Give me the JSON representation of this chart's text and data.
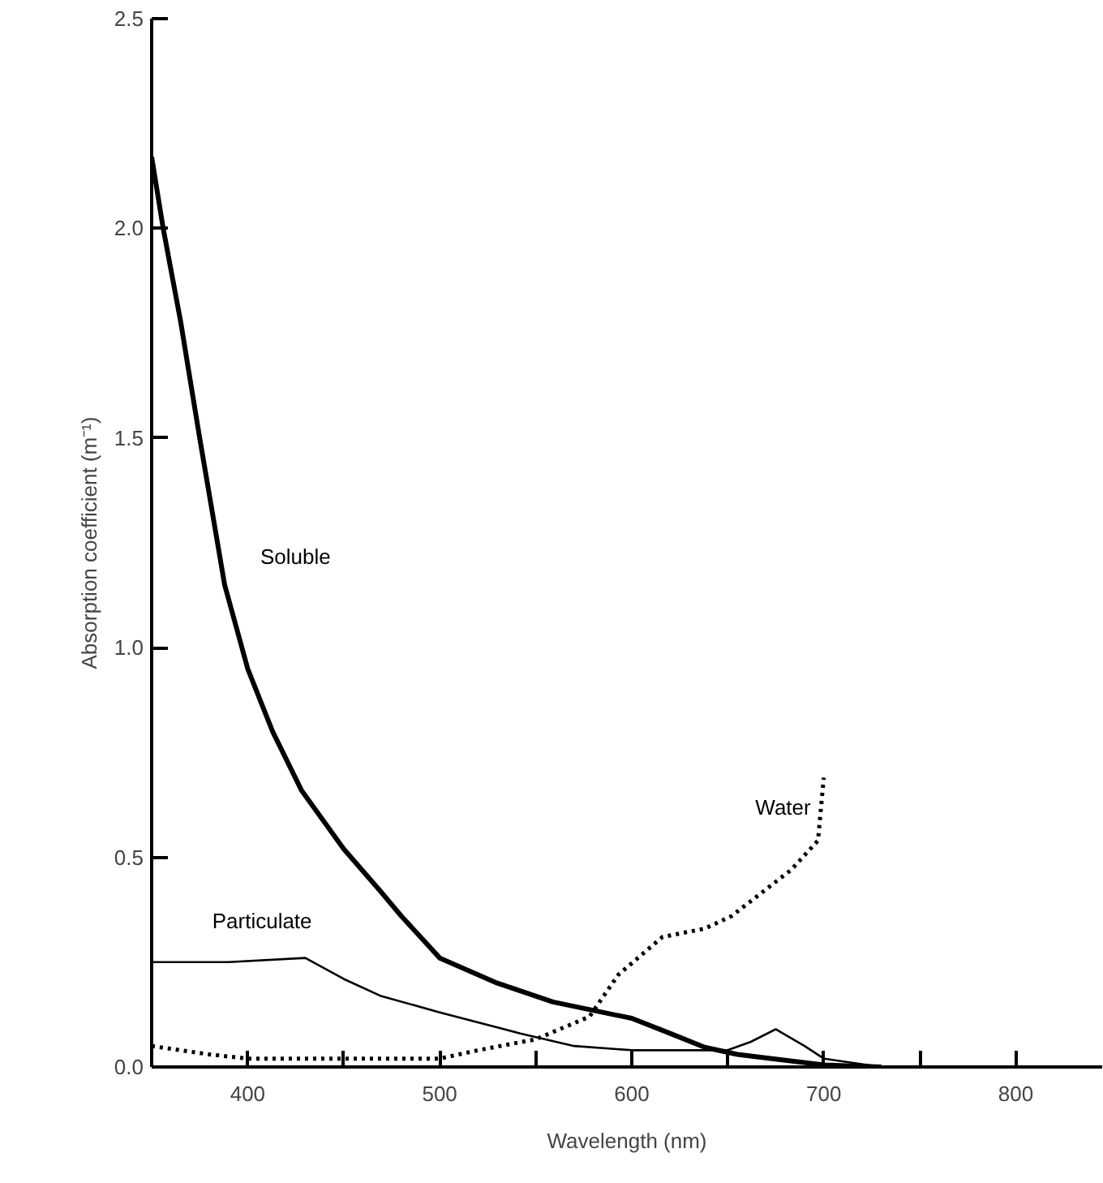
{
  "chart_data": {
    "type": "line",
    "xlabel": "Wavelength (nm)",
    "ylabel": "Absorption coefficient (m⁻¹)",
    "xlim": [
      350,
      845
    ],
    "ylim": [
      0,
      2.5
    ],
    "xticks": [
      400,
      {
        "value": 450,
        "label": null
      },
      500,
      {
        "value": 550,
        "label": null
      },
      600,
      {
        "value": 650,
        "label": null
      },
      700,
      {
        "value": 750,
        "label": null
      },
      800
    ],
    "yticks": [
      {
        "value": 0,
        "label": "0.0"
      },
      0.5,
      {
        "value": 1,
        "label": "1.0"
      },
      1.5,
      {
        "value": 2,
        "label": "2.0"
      },
      2.5
    ],
    "grid": false,
    "marker": "none",
    "series": [
      {
        "name": "Soluble",
        "color": "#000000",
        "line_style": "solid",
        "x": [
          350,
          356,
          365,
          375,
          388,
          400,
          413,
          428,
          450,
          469,
          480,
          500,
          530,
          559,
          600,
          620,
          638,
          655,
          673,
          700,
          730
        ],
        "values": [
          2.17,
          2.0,
          1.78,
          1.5,
          1.15,
          0.95,
          0.8,
          0.66,
          0.52,
          0.42,
          0.36,
          0.26,
          0.2,
          0.155,
          0.116,
          0.08,
          0.047,
          0.03,
          0.02,
          0.005,
          0.0
        ]
      },
      {
        "name": "Particulate",
        "color": "#000000",
        "line_style": "solid",
        "x": [
          350,
          390,
          430,
          450,
          469,
          500,
          542,
          570,
          600,
          650,
          662,
          675,
          690,
          700,
          730
        ],
        "values": [
          0.25,
          0.25,
          0.26,
          0.21,
          0.17,
          0.13,
          0.08,
          0.05,
          0.04,
          0.04,
          0.06,
          0.09,
          0.05,
          0.02,
          0.0
        ]
      },
      {
        "name": "Water",
        "color": "#000000",
        "line_style": "dotted",
        "x": [
          350,
          380,
          400,
          450,
          500,
          520,
          550,
          578,
          593,
          616,
          638,
          652,
          683,
          697,
          700
        ],
        "values": [
          0.05,
          0.03,
          0.02,
          0.02,
          0.02,
          0.04,
          0.066,
          0.12,
          0.22,
          0.31,
          0.33,
          0.36,
          0.47,
          0.54,
          0.69
        ]
      }
    ]
  }
}
